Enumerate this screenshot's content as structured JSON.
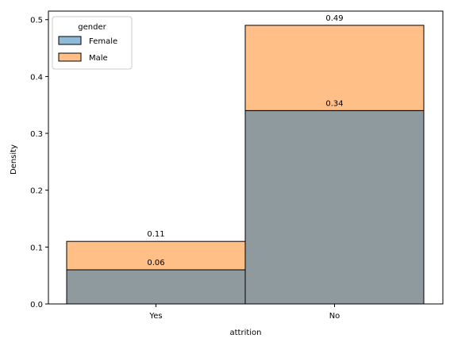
{
  "chart_data": {
    "type": "bar",
    "stacked": true,
    "categories": [
      "Yes",
      "No"
    ],
    "series": [
      {
        "name": "Female",
        "values": [
          0.06,
          0.34
        ],
        "color": "#1f77b4",
        "alpha": 0.5
      },
      {
        "name": "Male",
        "values": [
          0.05,
          0.15
        ],
        "color": "#ff7f0e",
        "alpha": 0.5
      }
    ],
    "data_labels": [
      {
        "category": "Yes",
        "text": "0.06",
        "value": 0.06
      },
      {
        "category": "Yes",
        "text": "0.11",
        "value": 0.11
      },
      {
        "category": "No",
        "text": "0.34",
        "value": 0.34
      },
      {
        "category": "No",
        "text": "0.49",
        "value": 0.49
      }
    ],
    "xlabel": "attrition",
    "ylabel": "Density",
    "ylim": [
      0,
      0.515
    ],
    "yticks": [
      "0.0",
      "0.1",
      "0.2",
      "0.3",
      "0.4",
      "0.5"
    ],
    "legend": {
      "title": "gender",
      "placement": "top-left"
    },
    "grid": false,
    "overlap_color": "#8f9a9f"
  }
}
